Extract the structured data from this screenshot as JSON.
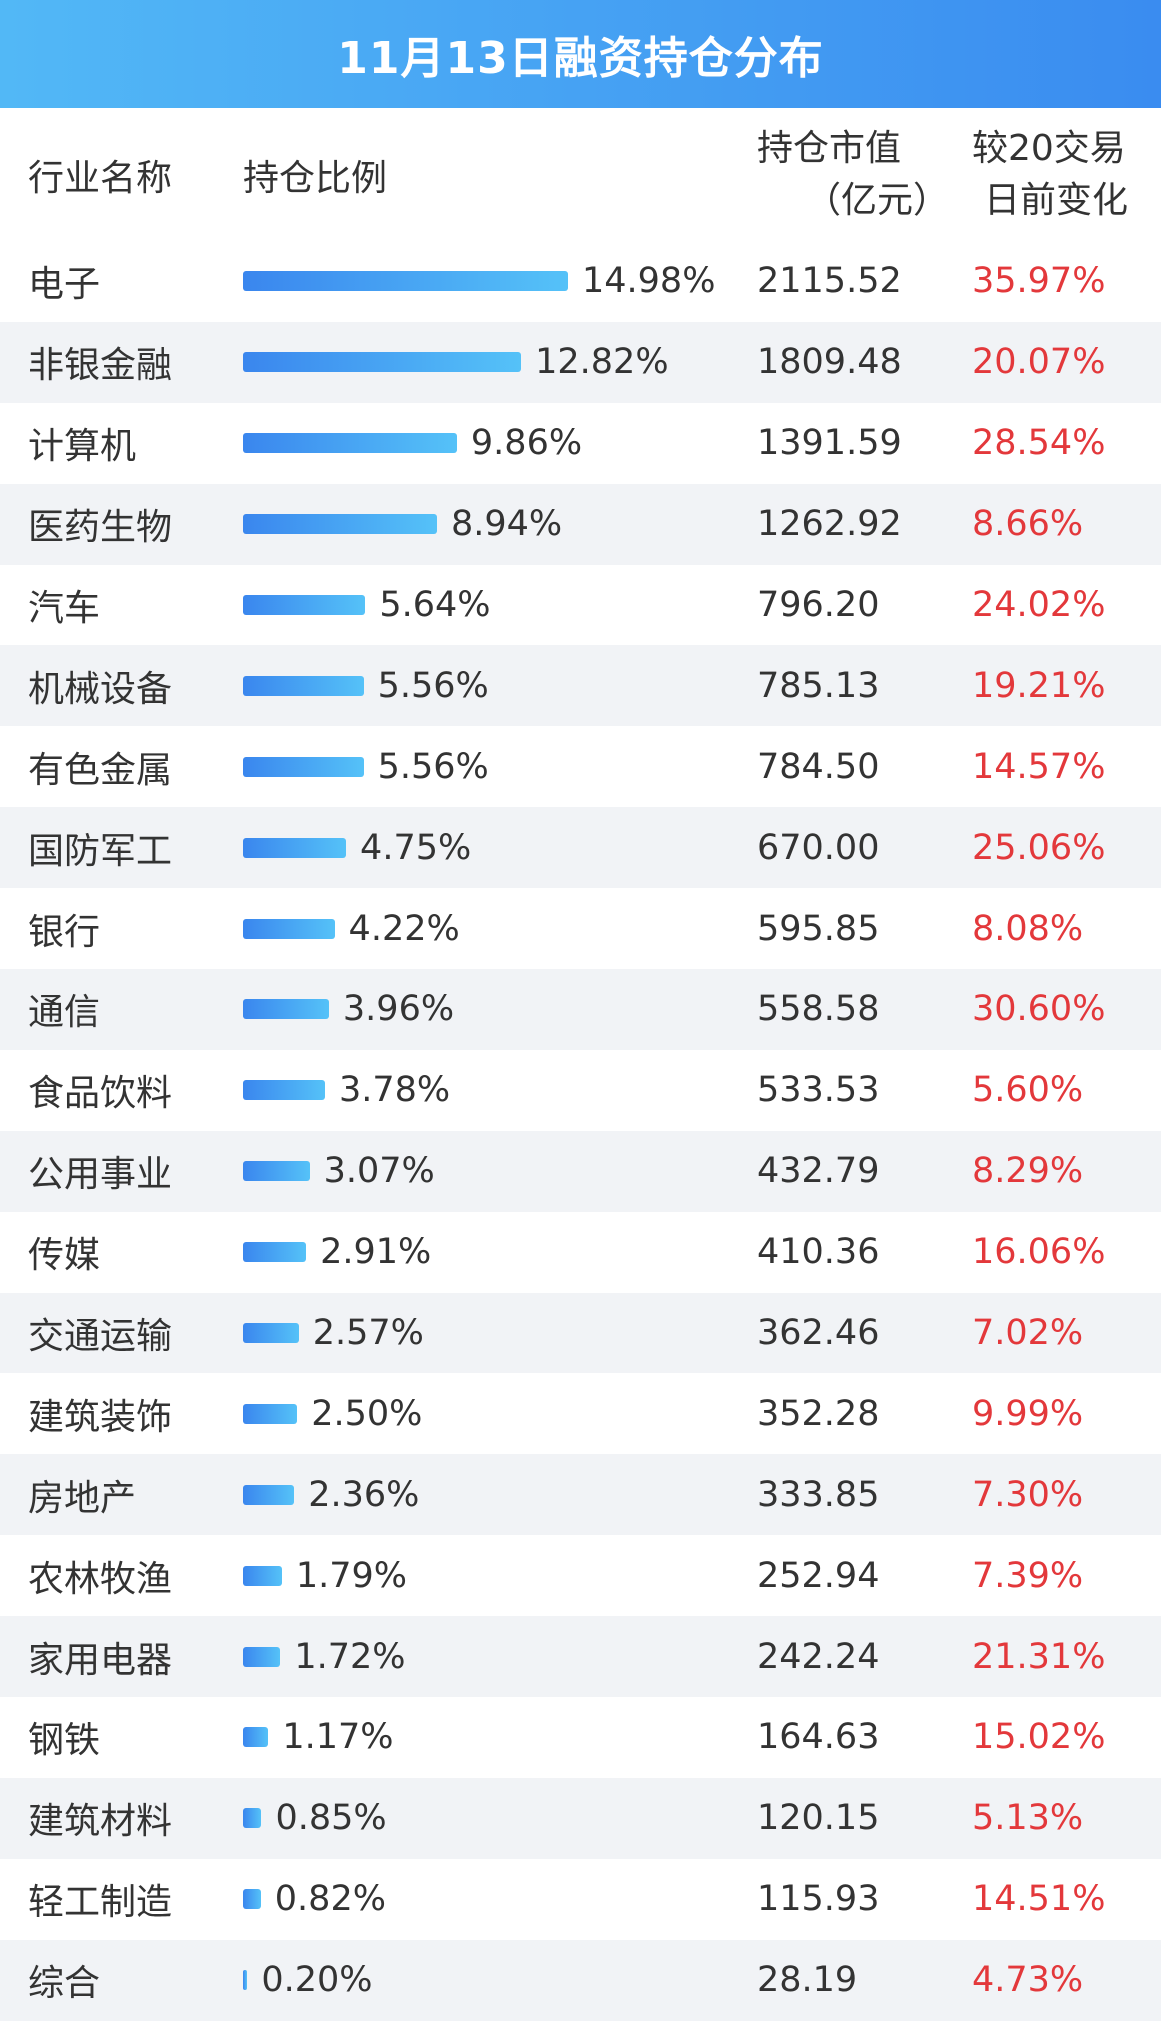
{
  "title": "11月13日融资持仓分布",
  "header": {
    "industry": "行业名称",
    "ratio": "持仓比例",
    "market_value_line1": "持仓市值",
    "market_value_line2": "（亿元）",
    "change_line1": "较20交易",
    "change_line2": "日前变化"
  },
  "colors": {
    "title_bg_start": "#52b8f6",
    "title_bg_end": "#3a8cf0",
    "bar_start": "#3a86ee",
    "bar_end": "#55c2f8",
    "change_text": "#e3383b",
    "alt_row_bg": "#f1f3f6"
  },
  "rows": [
    {
      "industry": "电子",
      "ratio": "14.98%",
      "market_value": "2115.52",
      "change": "35.97%"
    },
    {
      "industry": "非银金融",
      "ratio": "12.82%",
      "market_value": "1809.48",
      "change": "20.07%"
    },
    {
      "industry": "计算机",
      "ratio": "9.86%",
      "market_value": "1391.59",
      "change": "28.54%"
    },
    {
      "industry": "医药生物",
      "ratio": "8.94%",
      "market_value": "1262.92",
      "change": "8.66%"
    },
    {
      "industry": "汽车",
      "ratio": "5.64%",
      "market_value": "796.20",
      "change": "24.02%"
    },
    {
      "industry": "机械设备",
      "ratio": "5.56%",
      "market_value": "785.13",
      "change": "19.21%"
    },
    {
      "industry": "有色金属",
      "ratio": "5.56%",
      "market_value": "784.50",
      "change": "14.57%"
    },
    {
      "industry": "国防军工",
      "ratio": "4.75%",
      "market_value": "670.00",
      "change": "25.06%"
    },
    {
      "industry": "银行",
      "ratio": "4.22%",
      "market_value": "595.85",
      "change": "8.08%"
    },
    {
      "industry": "通信",
      "ratio": "3.96%",
      "market_value": "558.58",
      "change": "30.60%"
    },
    {
      "industry": "食品饮料",
      "ratio": "3.78%",
      "market_value": "533.53",
      "change": "5.60%"
    },
    {
      "industry": "公用事业",
      "ratio": "3.07%",
      "market_value": "432.79",
      "change": "8.29%"
    },
    {
      "industry": "传媒",
      "ratio": "2.91%",
      "market_value": "410.36",
      "change": "16.06%"
    },
    {
      "industry": "交通运输",
      "ratio": "2.57%",
      "market_value": "362.46",
      "change": "7.02%"
    },
    {
      "industry": "建筑装饰",
      "ratio": "2.50%",
      "market_value": "352.28",
      "change": "9.99%"
    },
    {
      "industry": "房地产",
      "ratio": "2.36%",
      "market_value": "333.85",
      "change": "7.30%"
    },
    {
      "industry": "农林牧渔",
      "ratio": "1.79%",
      "market_value": "252.94",
      "change": "7.39%"
    },
    {
      "industry": "家用电器",
      "ratio": "1.72%",
      "market_value": "242.24",
      "change": "21.31%"
    },
    {
      "industry": "钢铁",
      "ratio": "1.17%",
      "market_value": "164.63",
      "change": "15.02%"
    },
    {
      "industry": "建筑材料",
      "ratio": "0.85%",
      "market_value": "120.15",
      "change": "5.13%"
    },
    {
      "industry": "轻工制造",
      "ratio": "0.82%",
      "market_value": "115.93",
      "change": "14.51%"
    },
    {
      "industry": "综合",
      "ratio": "0.20%",
      "market_value": "28.19",
      "change": "4.73%"
    }
  ],
  "chart_data": {
    "type": "table",
    "title": "11月13日融资持仓分布",
    "columns": [
      "行业名称",
      "持仓比例",
      "持仓市值（亿元）",
      "较20交易日前变化"
    ],
    "categories": [
      "电子",
      "非银金融",
      "计算机",
      "医药生物",
      "汽车",
      "机械设备",
      "有色金属",
      "国防军工",
      "银行",
      "通信",
      "食品饮料",
      "公用事业",
      "传媒",
      "交通运输",
      "建筑装饰",
      "房地产",
      "农林牧渔",
      "家用电器",
      "钢铁",
      "建筑材料",
      "轻工制造",
      "综合"
    ],
    "ratio_values": [
      14.98,
      12.82,
      9.86,
      8.94,
      5.64,
      5.56,
      5.56,
      4.75,
      4.22,
      3.96,
      3.78,
      3.07,
      2.91,
      2.57,
      2.5,
      2.36,
      1.79,
      1.72,
      1.17,
      0.85,
      0.82,
      0.2
    ],
    "market_value": [
      2115.52,
      1809.48,
      1391.59,
      1262.92,
      796.2,
      785.13,
      784.5,
      670.0,
      595.85,
      558.58,
      533.53,
      432.79,
      410.36,
      362.46,
      352.28,
      333.85,
      252.94,
      242.24,
      164.63,
      120.15,
      115.93,
      28.19
    ],
    "change_pct": [
      35.97,
      20.07,
      28.54,
      8.66,
      24.02,
      19.21,
      14.57,
      25.06,
      8.08,
      30.6,
      5.6,
      8.29,
      16.06,
      7.02,
      9.99,
      7.3,
      7.39,
      21.31,
      15.02,
      5.13,
      14.51,
      4.73
    ],
    "grid": false
  }
}
